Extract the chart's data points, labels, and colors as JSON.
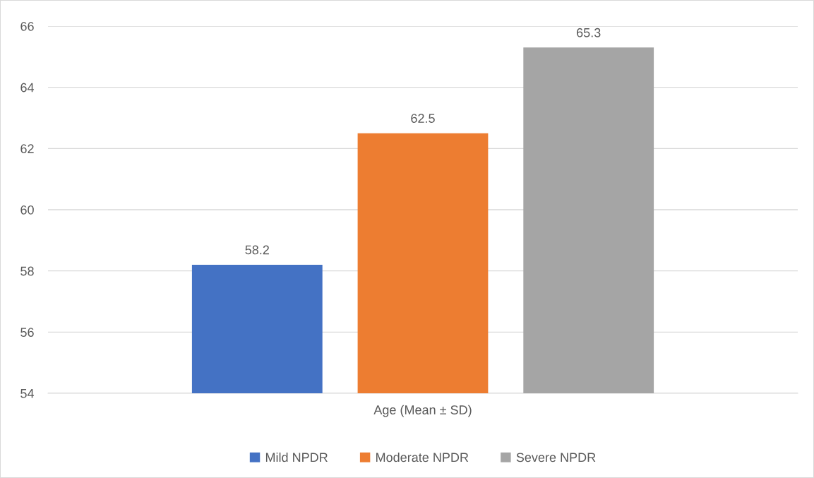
{
  "chart_data": {
    "type": "bar",
    "categories": [
      "Age (Mean ± SD)"
    ],
    "series": [
      {
        "name": "Mild NPDR",
        "color": "#4472c4",
        "values": [
          58.2
        ]
      },
      {
        "name": "Moderate NPDR",
        "color": "#ed7d31",
        "values": [
          62.5
        ]
      },
      {
        "name": "Severe NPDR",
        "color": "#a5a5a5",
        "values": [
          65.3
        ]
      }
    ],
    "ylim": [
      54,
      66
    ],
    "yticks": [
      54,
      56,
      58,
      60,
      62,
      64,
      66
    ],
    "grid": "y",
    "legend": "bottom",
    "data_labels": true
  }
}
